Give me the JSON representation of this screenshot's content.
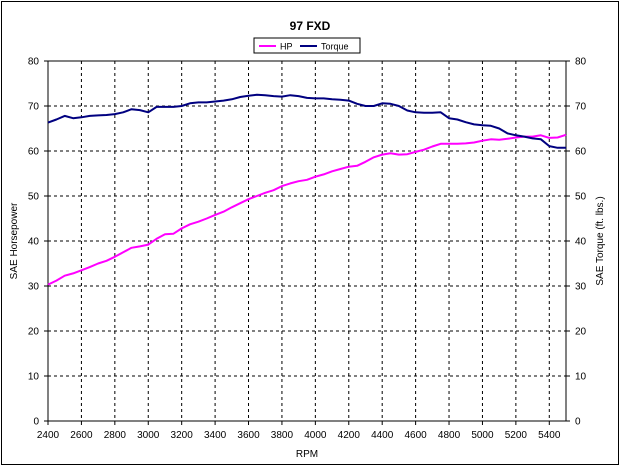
{
  "chart_data": {
    "type": "line",
    "title": "97 FXD",
    "xlabel": "RPM",
    "ylabel": "SAE Horsepower",
    "y2label": "SAE Torque (ft. lbs.)",
    "xlim": [
      2400,
      5500
    ],
    "ylim": [
      0,
      80
    ],
    "y2lim": [
      0,
      80
    ],
    "x_ticks": [
      2400,
      2600,
      2800,
      3000,
      3200,
      3400,
      3600,
      3800,
      4000,
      4200,
      4400,
      4600,
      4800,
      5000,
      5200,
      5400
    ],
    "y_ticks": [
      0,
      10,
      20,
      30,
      40,
      50,
      60,
      70,
      80
    ],
    "grid": true,
    "legend_position": "top-center",
    "series": [
      {
        "name": "HP",
        "color": "#ff00ff",
        "x": [
          2400,
          2450,
          2500,
          2550,
          2600,
          2650,
          2700,
          2750,
          2800,
          2850,
          2900,
          2950,
          3000,
          3050,
          3100,
          3150,
          3200,
          3250,
          3300,
          3350,
          3400,
          3450,
          3500,
          3550,
          3600,
          3650,
          3700,
          3750,
          3800,
          3850,
          3900,
          3950,
          4000,
          4050,
          4100,
          4150,
          4200,
          4250,
          4300,
          4350,
          4400,
          4450,
          4500,
          4550,
          4600,
          4650,
          4700,
          4750,
          4800,
          4850,
          4900,
          4950,
          5000,
          5050,
          5100,
          5150,
          5200,
          5250,
          5300,
          5350,
          5400,
          5450,
          5500
        ],
        "values": [
          30.3,
          31.2,
          32.3,
          32.8,
          33.5,
          34.2,
          35.0,
          35.6,
          36.5,
          37.5,
          38.5,
          38.8,
          39.2,
          40.5,
          41.5,
          41.6,
          42.8,
          43.7,
          44.3,
          45.0,
          45.8,
          46.5,
          47.5,
          48.4,
          49.3,
          50.0,
          50.7,
          51.3,
          52.2,
          52.8,
          53.3,
          53.6,
          54.3,
          54.8,
          55.5,
          56.0,
          56.5,
          56.7,
          57.6,
          58.6,
          59.2,
          59.5,
          59.2,
          59.3,
          59.8,
          60.3,
          61.0,
          61.6,
          61.6,
          61.6,
          61.7,
          61.9,
          62.3,
          62.6,
          62.5,
          62.7,
          63.0,
          63.2,
          63.2,
          63.5,
          62.9,
          63.0,
          63.6
        ]
      },
      {
        "name": "Torque",
        "color": "#000080",
        "x": [
          2400,
          2450,
          2500,
          2550,
          2600,
          2650,
          2700,
          2750,
          2800,
          2850,
          2900,
          2950,
          3000,
          3050,
          3100,
          3150,
          3200,
          3250,
          3300,
          3350,
          3400,
          3450,
          3500,
          3550,
          3600,
          3650,
          3700,
          3750,
          3800,
          3850,
          3900,
          3950,
          4000,
          4050,
          4100,
          4150,
          4200,
          4250,
          4300,
          4350,
          4400,
          4450,
          4500,
          4550,
          4600,
          4650,
          4700,
          4750,
          4800,
          4850,
          4900,
          4950,
          5000,
          5050,
          5100,
          5150,
          5200,
          5250,
          5300,
          5350,
          5400,
          5450,
          5500
        ],
        "values": [
          66.3,
          67.0,
          67.8,
          67.3,
          67.5,
          67.8,
          67.9,
          68.0,
          68.2,
          68.6,
          69.3,
          69.1,
          68.6,
          69.8,
          69.8,
          69.8,
          70.0,
          70.6,
          70.8,
          70.8,
          71.0,
          71.2,
          71.5,
          72.0,
          72.3,
          72.5,
          72.4,
          72.2,
          72.1,
          72.4,
          72.2,
          71.8,
          71.7,
          71.7,
          71.5,
          71.4,
          71.2,
          70.5,
          70.0,
          70.0,
          70.6,
          70.5,
          70.0,
          69.0,
          68.6,
          68.5,
          68.5,
          68.6,
          67.3,
          67.0,
          66.4,
          65.9,
          65.7,
          65.6,
          65.0,
          63.9,
          63.5,
          63.2,
          62.8,
          62.6,
          61.1,
          60.7,
          60.7
        ]
      }
    ]
  }
}
